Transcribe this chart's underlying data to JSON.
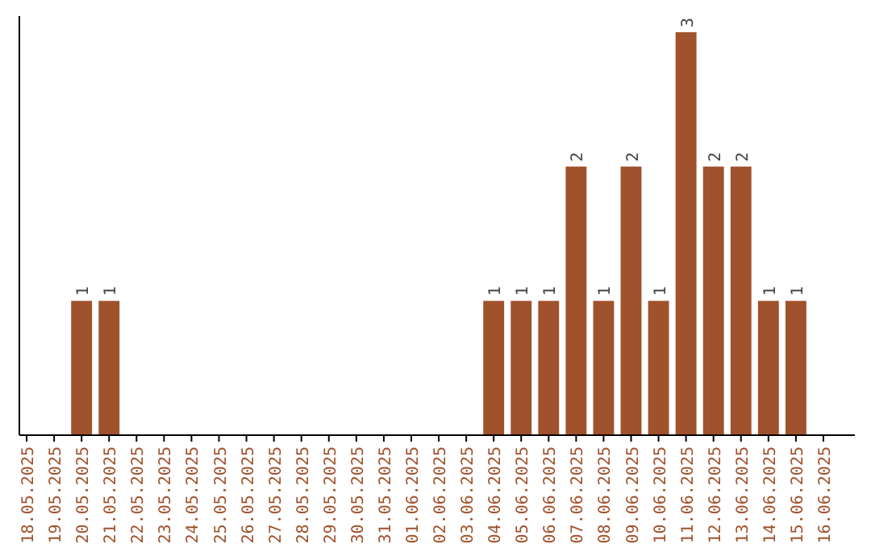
{
  "chart_data": {
    "type": "bar",
    "categories": [
      "18.05.2025",
      "19.05.2025",
      "20.05.2025",
      "21.05.2025",
      "22.05.2025",
      "23.05.2025",
      "24.05.2025",
      "25.05.2025",
      "26.05.2025",
      "27.05.2025",
      "28.05.2025",
      "29.05.2025",
      "30.05.2025",
      "31.05.2025",
      "01.06.2025",
      "02.06.2025",
      "03.06.2025",
      "04.06.2025",
      "05.06.2025",
      "06.06.2025",
      "07.06.2025",
      "08.06.2025",
      "09.06.2025",
      "10.06.2025",
      "11.06.2025",
      "12.06.2025",
      "13.06.2025",
      "14.06.2025",
      "15.06.2025",
      "16.06.2025"
    ],
    "values": [
      0,
      0,
      1,
      1,
      0,
      0,
      0,
      0,
      0,
      0,
      0,
      0,
      0,
      0,
      0,
      0,
      0,
      1,
      1,
      1,
      2,
      1,
      2,
      1,
      3,
      2,
      2,
      1,
      1,
      0
    ],
    "value_labels": [
      null,
      null,
      "1",
      "1",
      null,
      null,
      null,
      null,
      null,
      null,
      null,
      null,
      null,
      null,
      null,
      null,
      null,
      "1",
      "1",
      "1",
      "2",
      "1",
      "2",
      "1",
      "3",
      "2",
      "2",
      "1",
      "1",
      null
    ],
    "color": "#a0522d"
  }
}
